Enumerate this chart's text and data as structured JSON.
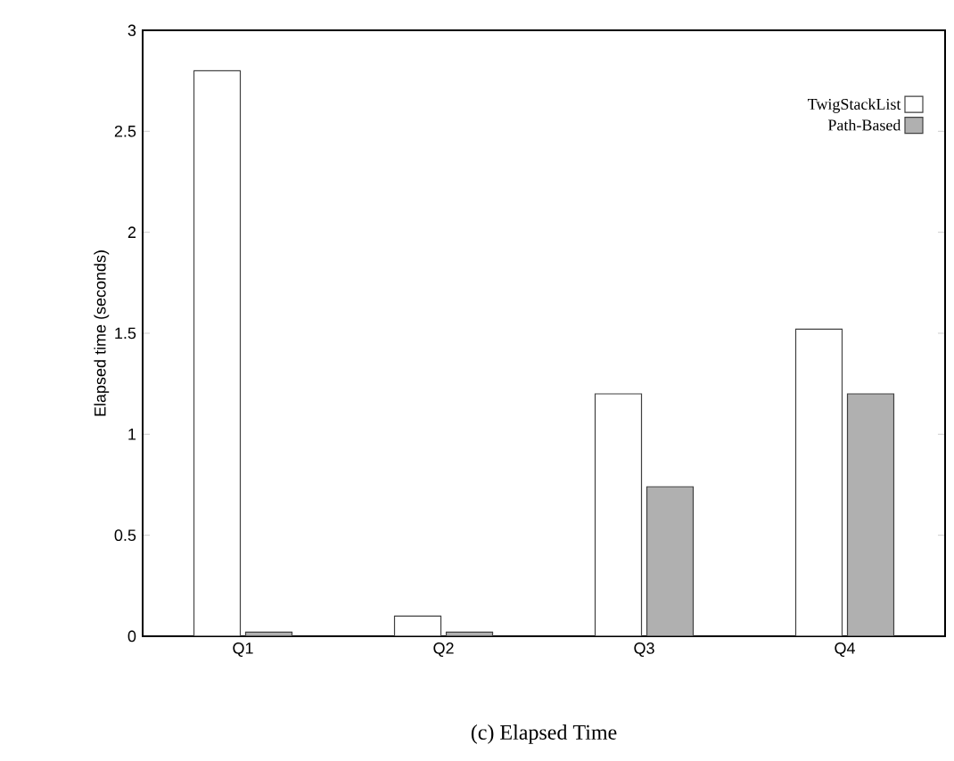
{
  "chart_data": {
    "type": "bar",
    "categories": [
      "Q1",
      "Q2",
      "Q3",
      "Q4"
    ],
    "series": [
      {
        "name": "TwigStackList",
        "color": "#ffffff",
        "values": [
          2.8,
          0.1,
          1.2,
          1.52
        ]
      },
      {
        "name": "Path-Based",
        "color": "#b0b0b0",
        "values": [
          0.02,
          0.02,
          0.74,
          1.2
        ]
      }
    ],
    "ylabel": "Elapsed time (seconds)",
    "ylim": [
      0,
      3
    ],
    "yticks": [
      0,
      0.5,
      1,
      1.5,
      2,
      2.5,
      3
    ],
    "legend": "top right",
    "grid": false,
    "annotations": [
      "(c) Elapsed Time"
    ]
  }
}
